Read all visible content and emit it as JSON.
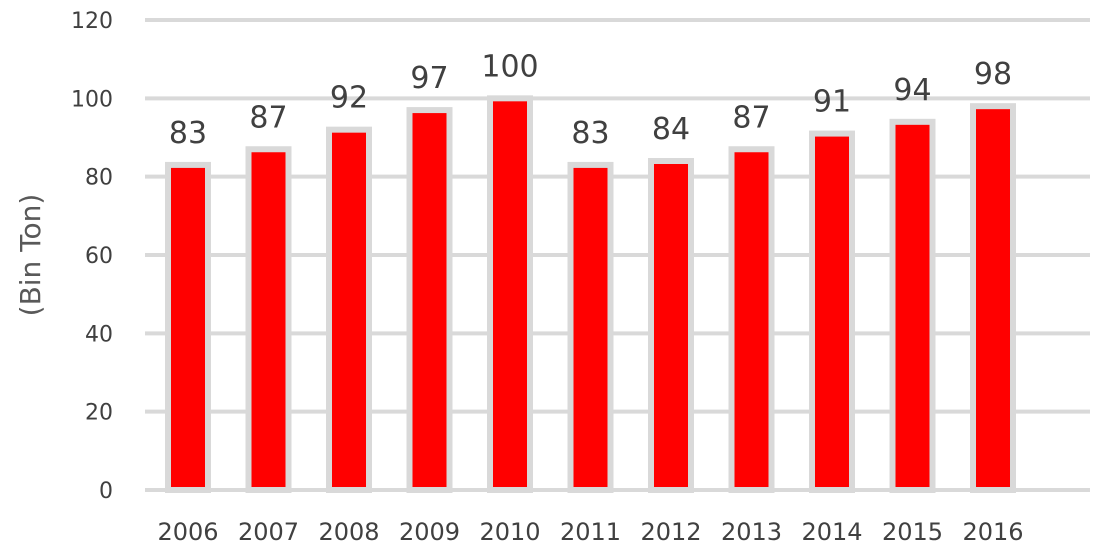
{
  "chart_data": {
    "type": "bar",
    "title": "",
    "xlabel": "",
    "ylabel": "(Bin Ton)",
    "categories": [
      "2006",
      "2007",
      "2008",
      "2009",
      "2010",
      "2011",
      "2012",
      "2013",
      "2014",
      "2015",
      "2016"
    ],
    "series": [
      {
        "values": [
          83,
          87,
          92,
          97,
          100,
          83,
          84,
          87,
          91,
          94,
          98
        ]
      }
    ],
    "ylim": [
      0,
      120
    ],
    "yticks": [
      "0",
      "20",
      "40",
      "60",
      "80",
      "100",
      "120"
    ],
    "grid": true,
    "legend": "none",
    "colors": {
      "bar": "#ff0000",
      "bar_outline": "#d9d9d9",
      "grid": "#d9d9d9"
    }
  }
}
